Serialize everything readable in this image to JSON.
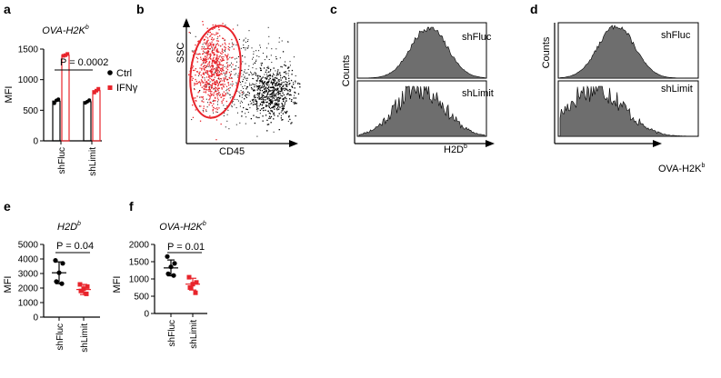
{
  "colors": {
    "red": "#e8242b",
    "black": "#000000",
    "gray": "#6e6e6e"
  },
  "panels": [
    {
      "id": "a",
      "label": "a",
      "chart_data": {
        "type": "bar",
        "title": "OVA-H2K",
        "title_sup": "b",
        "ylabel": "MFI",
        "ylim": [
          0,
          1500
        ],
        "yticks": [
          0,
          500,
          1000,
          1500
        ],
        "categories": [
          "shFluc",
          "shLimit"
        ],
        "series": [
          {
            "name": "Ctrl",
            "color": "#000000",
            "values": [
              650,
              640
            ],
            "points": [
              [
                615,
                660,
                680
              ],
              [
                620,
                640,
                665
              ]
            ]
          },
          {
            "name": "IFNγ",
            "color": "#e8242b",
            "values": [
              1400,
              820
            ],
            "points": [
              [
                1390,
                1400,
                1420
              ],
              [
                790,
                820,
                850
              ]
            ]
          }
        ],
        "annotation": "P = 0.0002",
        "legend_position": "right"
      }
    },
    {
      "id": "b",
      "label": "b",
      "xlabel": "CD45",
      "ylabel": "SSC"
    },
    {
      "id": "c",
      "label": "c",
      "xlabel": "H2D",
      "xlabel_sup": "b",
      "ylabel": "Counts",
      "hist_labels": [
        "shFluc",
        "shLimit"
      ]
    },
    {
      "id": "d",
      "label": "d",
      "xlabel": "OVA-H2K",
      "xlabel_sup": "b",
      "ylabel": "Counts",
      "hist_labels": [
        "shFluc",
        "shLimit"
      ]
    },
    {
      "id": "e",
      "label": "e",
      "chart_data": {
        "type": "scatter",
        "title": "H2D",
        "title_sup": "b",
        "ylabel": "MFI",
        "ylim": [
          0,
          5000
        ],
        "yticks": [
          0,
          1000,
          2000,
          3000,
          4000,
          5000
        ],
        "categories": [
          "shFluc",
          "shLimit"
        ],
        "series": [
          {
            "name": "shFluc",
            "color": "#000000",
            "marker": "circle",
            "points": [
              3900,
              3700,
              3050,
              2450,
              2300
            ],
            "mean": 3050,
            "sd": 750
          },
          {
            "name": "shLimit",
            "color": "#e8242b",
            "marker": "square",
            "points": [
              2250,
              2100,
              1950,
              1800,
              1600
            ],
            "mean": 1900,
            "sd": 350
          }
        ],
        "annotation": "P = 0.04"
      }
    },
    {
      "id": "f",
      "label": "f",
      "chart_data": {
        "type": "scatter",
        "title": "OVA-H2K",
        "title_sup": "b",
        "ylabel": "MFI",
        "ylim": [
          0,
          2000
        ],
        "yticks": [
          0,
          500,
          1000,
          1500,
          2000
        ],
        "categories": [
          "shFluc",
          "shLimit"
        ],
        "series": [
          {
            "name": "shFluc",
            "color": "#000000",
            "marker": "circle",
            "points": [
              1650,
              1450,
              1350,
              1150,
              1100
            ],
            "mean": 1320,
            "sd": 230
          },
          {
            "name": "shLimit",
            "color": "#e8242b",
            "marker": "square",
            "points": [
              1050,
              900,
              850,
              750,
              600
            ],
            "mean": 850,
            "sd": 170
          }
        ],
        "annotation": "P = 0.01"
      }
    }
  ]
}
